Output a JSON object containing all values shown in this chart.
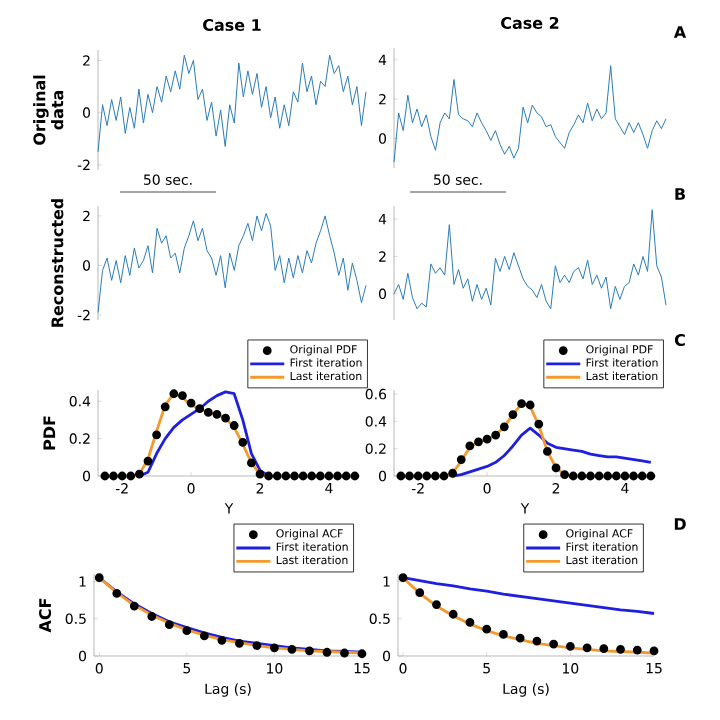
{
  "chart_data": [
    {
      "type": "line",
      "title": "Case 1",
      "ylabel": "Original data",
      "tick_labels": "y",
      "color": "#2b7bba",
      "ylim": [
        -2.2,
        2.4
      ],
      "yticks": [
        -2,
        0,
        2
      ],
      "categories": [
        null,
        null,
        null,
        null,
        null,
        null,
        null,
        null,
        null,
        null,
        null,
        null,
        null,
        null,
        null,
        null,
        null,
        null,
        null,
        null,
        null,
        null,
        null,
        null,
        null,
        null,
        null,
        null,
        null,
        null,
        null,
        null,
        null,
        null,
        null,
        null,
        null,
        null,
        null,
        null,
        null,
        null,
        null,
        null,
        null,
        null,
        null,
        null,
        null,
        null,
        null,
        null,
        null,
        null,
        null,
        null,
        null,
        null,
        null,
        null
      ],
      "values": [
        -1.5,
        0.3,
        -0.5,
        0.5,
        -0.3,
        0.6,
        -0.8,
        0.2,
        -0.6,
        0.9,
        -0.4,
        0.7,
        0.0,
        1.0,
        0.4,
        1.4,
        0.8,
        1.6,
        0.9,
        2.2,
        1.5,
        2.0,
        0.5,
        0.9,
        -0.3,
        0.4,
        -0.9,
        0.1,
        -1.3,
        0.3,
        -0.4,
        1.9,
        0.6,
        1.6,
        0.7,
        1.5,
        0.2,
        1.0,
        -0.2,
        0.6,
        -0.6,
        0.3,
        -0.5,
        0.8,
        0.4,
        1.9,
        0.8,
        1.4,
        0.3,
        1.2,
        1.0,
        2.2,
        1.5,
        1.8,
        0.8,
        1.4,
        0.3,
        1.0,
        -0.5,
        0.8
      ]
    },
    {
      "type": "line",
      "title": "Case 2",
      "tick_labels": "y",
      "color": "#2b7bba",
      "ylim": [
        -1.5,
        4.6
      ],
      "yticks": [
        0,
        2,
        4
      ],
      "annotations": [
        "A"
      ],
      "categories": [
        null,
        null,
        null,
        null,
        null,
        null,
        null,
        null,
        null,
        null,
        null,
        null,
        null,
        null,
        null,
        null,
        null,
        null,
        null,
        null,
        null,
        null,
        null,
        null,
        null,
        null,
        null,
        null,
        null,
        null,
        null,
        null,
        null,
        null,
        null,
        null,
        null,
        null,
        null,
        null,
        null,
        null,
        null,
        null,
        null,
        null,
        null,
        null,
        null,
        null,
        null,
        null,
        null,
        null,
        null,
        null,
        null,
        null,
        null,
        null
      ],
      "values": [
        -1.2,
        1.3,
        0.4,
        2.2,
        0.8,
        1.5,
        0.6,
        1.2,
        0.1,
        -0.6,
        0.8,
        1.3,
        1.0,
        3.0,
        1.2,
        1.0,
        0.9,
        0.6,
        1.3,
        0.8,
        0.4,
        -0.1,
        0.4,
        -0.3,
        -0.8,
        -0.4,
        -1.0,
        -0.5,
        1.6,
        0.8,
        1.7,
        1.3,
        1.1,
        0.6,
        0.7,
        0.1,
        -0.2,
        -0.5,
        0.3,
        0.7,
        1.2,
        0.8,
        1.8,
        0.9,
        1.5,
        1.0,
        1.3,
        3.7,
        1.0,
        0.6,
        0.2,
        0.8,
        0.3,
        0.8,
        0.2,
        -0.5,
        0.4,
        0.9,
        0.5,
        1.0
      ]
    },
    {
      "type": "line",
      "ylabel": "Reconstructed",
      "tick_labels": "y",
      "color": "#2b7bba",
      "ylim": [
        -2.2,
        2.4
      ],
      "yticks": [
        -2,
        0,
        2
      ],
      "annotations": [
        "50 sec."
      ],
      "categories": [
        null,
        null,
        null,
        null,
        null,
        null,
        null,
        null,
        null,
        null,
        null,
        null,
        null,
        null,
        null,
        null,
        null,
        null,
        null,
        null,
        null,
        null,
        null,
        null,
        null,
        null,
        null,
        null,
        null,
        null,
        null,
        null,
        null,
        null,
        null,
        null,
        null,
        null,
        null,
        null,
        null,
        null,
        null,
        null,
        null,
        null,
        null,
        null,
        null,
        null,
        null,
        null,
        null,
        null,
        null,
        null,
        null,
        null,
        null,
        null
      ],
      "values": [
        -1.9,
        -0.2,
        0.3,
        -0.6,
        0.2,
        -0.7,
        0.4,
        -0.4,
        0.7,
        -0.1,
        0.2,
        0.8,
        -0.3,
        1.5,
        0.9,
        1.2,
        0.3,
        0.5,
        -0.3,
        0.7,
        1.2,
        1.8,
        1.0,
        1.5,
        0.6,
        0.3,
        -0.4,
        0.4,
        -0.9,
        0.5,
        -0.2,
        0.8,
        1.2,
        1.7,
        1.0,
        2.0,
        1.4,
        2.1,
        1.6,
        -0.2,
        0.4,
        -0.7,
        0.3,
        -0.5,
        0.4,
        -0.3,
        0.6,
        0.1,
        0.9,
        1.4,
        2.0,
        1.2,
        0.5,
        -0.4,
        0.3,
        -1.0,
        0.1,
        -0.6,
        -1.5,
        -0.8
      ]
    },
    {
      "type": "line",
      "tick_labels": "y",
      "color": "#2b7bba",
      "ylim": [
        -1.4,
        4.7
      ],
      "yticks": [
        0,
        2,
        4
      ],
      "annotations": [
        "50 sec.",
        "B"
      ],
      "categories": [
        null,
        null,
        null,
        null,
        null,
        null,
        null,
        null,
        null,
        null,
        null,
        null,
        null,
        null,
        null,
        null,
        null,
        null,
        null,
        null,
        null,
        null,
        null,
        null,
        null,
        null,
        null,
        null,
        null,
        null,
        null,
        null,
        null,
        null,
        null,
        null,
        null,
        null,
        null,
        null,
        null,
        null,
        null,
        null,
        null,
        null,
        null,
        null,
        null,
        null,
        null,
        null,
        null,
        null,
        null,
        null,
        null,
        null,
        null,
        null
      ],
      "values": [
        0.0,
        0.5,
        -0.3,
        1.1,
        -0.2,
        -0.8,
        -0.5,
        -0.7,
        1.6,
        1.1,
        1.4,
        1.0,
        3.7,
        0.5,
        1.3,
        0.3,
        0.8,
        -0.4,
        0.5,
        -0.3,
        0.3,
        -0.6,
        1.9,
        1.2,
        2.0,
        1.3,
        2.2,
        1.5,
        0.8,
        0.4,
        0.2,
        -0.2,
        0.5,
        -0.4,
        -0.8,
        1.5,
        0.6,
        1.0,
        0.6,
        1.2,
        1.4,
        0.8,
        1.8,
        0.5,
        1.0,
        0.3,
        0.9,
        -0.8,
        0.4,
        -0.3,
        0.4,
        0.6,
        1.6,
        1.0,
        2.0,
        1.2,
        4.5,
        1.5,
        0.9,
        -0.6
      ]
    },
    {
      "type": "line",
      "xlabel": "Y",
      "ylabel": "PDF",
      "legend": "top right",
      "xlim": [
        -2.7,
        4.9
      ],
      "xticks": [
        -2,
        0,
        2,
        4
      ],
      "ylim": [
        0,
        0.46
      ],
      "yticks": [
        0,
        0.2,
        0.4
      ],
      "x": [
        -2.5,
        -2.25,
        -2,
        -1.75,
        -1.5,
        -1.25,
        -1,
        -0.75,
        -0.5,
        -0.25,
        0,
        0.25,
        0.5,
        0.75,
        1,
        1.25,
        1.5,
        1.75,
        2,
        2.25,
        2.5,
        2.75,
        3,
        3.25,
        3.5,
        3.75,
        4,
        4.25,
        4.5,
        4.75
      ],
      "series": [
        {
          "name": "Original PDF",
          "type": "scatter",
          "marker": "circle",
          "color": "#000000",
          "values": [
            0,
            0,
            0,
            0,
            0.01,
            0.08,
            0.22,
            0.37,
            0.44,
            0.43,
            0.39,
            0.36,
            0.34,
            0.33,
            0.31,
            0.27,
            0.18,
            0.07,
            0.01,
            0,
            0,
            0,
            0,
            0,
            0,
            0,
            0,
            0,
            0,
            0
          ]
        },
        {
          "name": "First iteration",
          "color": "#1f1fe0",
          "values": [
            null,
            null,
            null,
            null,
            0,
            0.02,
            0.12,
            0.2,
            0.26,
            0.3,
            0.33,
            0.36,
            0.4,
            0.43,
            0.45,
            0.44,
            0.3,
            0.12,
            0.03,
            0,
            null,
            null,
            null,
            null,
            null,
            null,
            null,
            null,
            null,
            null
          ]
        },
        {
          "name": "Last iteration",
          "color": "#f39a2d",
          "values": [
            null,
            null,
            null,
            0,
            0.01,
            0.09,
            0.24,
            0.38,
            0.44,
            0.42,
            0.38,
            0.36,
            0.34,
            0.33,
            0.31,
            0.26,
            0.17,
            0.07,
            0.01,
            0,
            null,
            null,
            null,
            null,
            null,
            null,
            null,
            null,
            null,
            null
          ]
        }
      ]
    },
    {
      "type": "line",
      "xlabel": "Y",
      "legend": "top right",
      "annotations": [
        "C"
      ],
      "xlim": [
        -2.7,
        4.9
      ],
      "xticks": [
        -2,
        0,
        2,
        4
      ],
      "ylim": [
        0,
        0.63
      ],
      "yticks": [
        0,
        0.2,
        0.4,
        0.6
      ],
      "x": [
        -2.5,
        -2.25,
        -2,
        -1.75,
        -1.5,
        -1.25,
        -1,
        -0.75,
        -0.5,
        -0.25,
        0,
        0.25,
        0.5,
        0.75,
        1,
        1.25,
        1.5,
        1.75,
        2,
        2.25,
        2.5,
        2.75,
        3,
        3.25,
        3.5,
        3.75,
        4,
        4.25,
        4.5,
        4.75
      ],
      "series": [
        {
          "name": "Original PDF",
          "type": "scatter",
          "marker": "circle",
          "color": "#000000",
          "values": [
            0,
            0,
            0,
            0,
            0,
            0,
            0.02,
            0.12,
            0.22,
            0.25,
            0.27,
            0.3,
            0.36,
            0.45,
            0.53,
            0.52,
            0.38,
            0.18,
            0.06,
            0.01,
            0,
            0,
            0,
            0,
            0,
            0,
            0,
            0,
            0,
            0
          ]
        },
        {
          "name": "First iteration",
          "color": "#1f1fe0",
          "values": [
            null,
            null,
            null,
            null,
            null,
            null,
            0,
            0.01,
            0.03,
            0.05,
            0.07,
            0.1,
            0.15,
            0.22,
            0.3,
            0.35,
            0.3,
            0.24,
            0.21,
            0.2,
            0.19,
            0.18,
            0.16,
            0.15,
            0.14,
            0.14,
            0.13,
            0.12,
            0.11,
            0.1
          ]
        },
        {
          "name": "Last iteration",
          "color": "#f39a2d",
          "values": [
            null,
            null,
            null,
            null,
            null,
            0,
            0.02,
            0.11,
            0.21,
            0.25,
            0.27,
            0.3,
            0.36,
            0.45,
            0.53,
            0.51,
            0.37,
            0.18,
            0.06,
            0.01,
            0,
            null,
            null,
            null,
            null,
            null,
            null,
            null,
            null,
            null
          ]
        }
      ]
    },
    {
      "type": "line",
      "xlabel": "Lag (s)",
      "ylabel": "ACF",
      "legend": "top right",
      "xlim": [
        -0.3,
        15
      ],
      "xticks": [
        0,
        5,
        10,
        15
      ],
      "ylim": [
        0,
        1.1
      ],
      "yticks": [
        0,
        0.5,
        1
      ],
      "x": [
        0,
        1,
        2,
        3,
        4,
        5,
        6,
        7,
        8,
        9,
        10,
        11,
        12,
        13,
        14,
        15
      ],
      "series": [
        {
          "name": "Original ACF",
          "type": "scatter",
          "marker": "circle",
          "color": "#000000",
          "values": [
            1.05,
            0.84,
            0.67,
            0.53,
            0.42,
            0.34,
            0.27,
            0.21,
            0.17,
            0.14,
            0.11,
            0.09,
            0.07,
            0.05,
            0.04,
            0.03
          ]
        },
        {
          "name": "First iteration",
          "color": "#1f1fe0",
          "values": [
            1.05,
            0.86,
            0.7,
            0.57,
            0.46,
            0.38,
            0.31,
            0.25,
            0.2,
            0.17,
            0.14,
            0.11,
            0.09,
            0.07,
            0.06,
            0.05
          ]
        },
        {
          "name": "Last iteration",
          "color": "#f39a2d",
          "values": [
            1.05,
            0.85,
            0.68,
            0.55,
            0.44,
            0.35,
            0.28,
            0.22,
            0.18,
            0.14,
            0.11,
            0.09,
            0.07,
            0.06,
            0.05,
            0.04
          ]
        }
      ]
    },
    {
      "type": "line",
      "xlabel": "Lag (s)",
      "legend": "top right",
      "annotations": [
        "D"
      ],
      "xlim": [
        -0.3,
        15
      ],
      "xticks": [
        0,
        5,
        10,
        15
      ],
      "ylim": [
        0,
        1.1
      ],
      "yticks": [
        0,
        0.5,
        1
      ],
      "x": [
        0,
        1,
        2,
        3,
        4,
        5,
        6,
        7,
        8,
        9,
        10,
        11,
        12,
        13,
        14,
        15
      ],
      "series": [
        {
          "name": "Original ACF",
          "type": "scatter",
          "marker": "circle",
          "color": "#000000",
          "values": [
            1.05,
            0.85,
            0.69,
            0.56,
            0.45,
            0.36,
            0.29,
            0.24,
            0.2,
            0.16,
            0.13,
            0.11,
            0.1,
            0.09,
            0.08,
            0.07
          ]
        },
        {
          "name": "First iteration",
          "color": "#1f1fe0",
          "values": [
            1.05,
            1.01,
            0.97,
            0.94,
            0.9,
            0.87,
            0.83,
            0.8,
            0.77,
            0.74,
            0.71,
            0.68,
            0.65,
            0.62,
            0.6,
            0.57
          ]
        },
        {
          "name": "Last iteration",
          "color": "#f39a2d",
          "values": [
            1.05,
            0.84,
            0.67,
            0.54,
            0.43,
            0.34,
            0.27,
            0.22,
            0.17,
            0.14,
            0.11,
            0.09,
            0.07,
            0.06,
            0.05,
            0.04
          ]
        }
      ]
    }
  ]
}
